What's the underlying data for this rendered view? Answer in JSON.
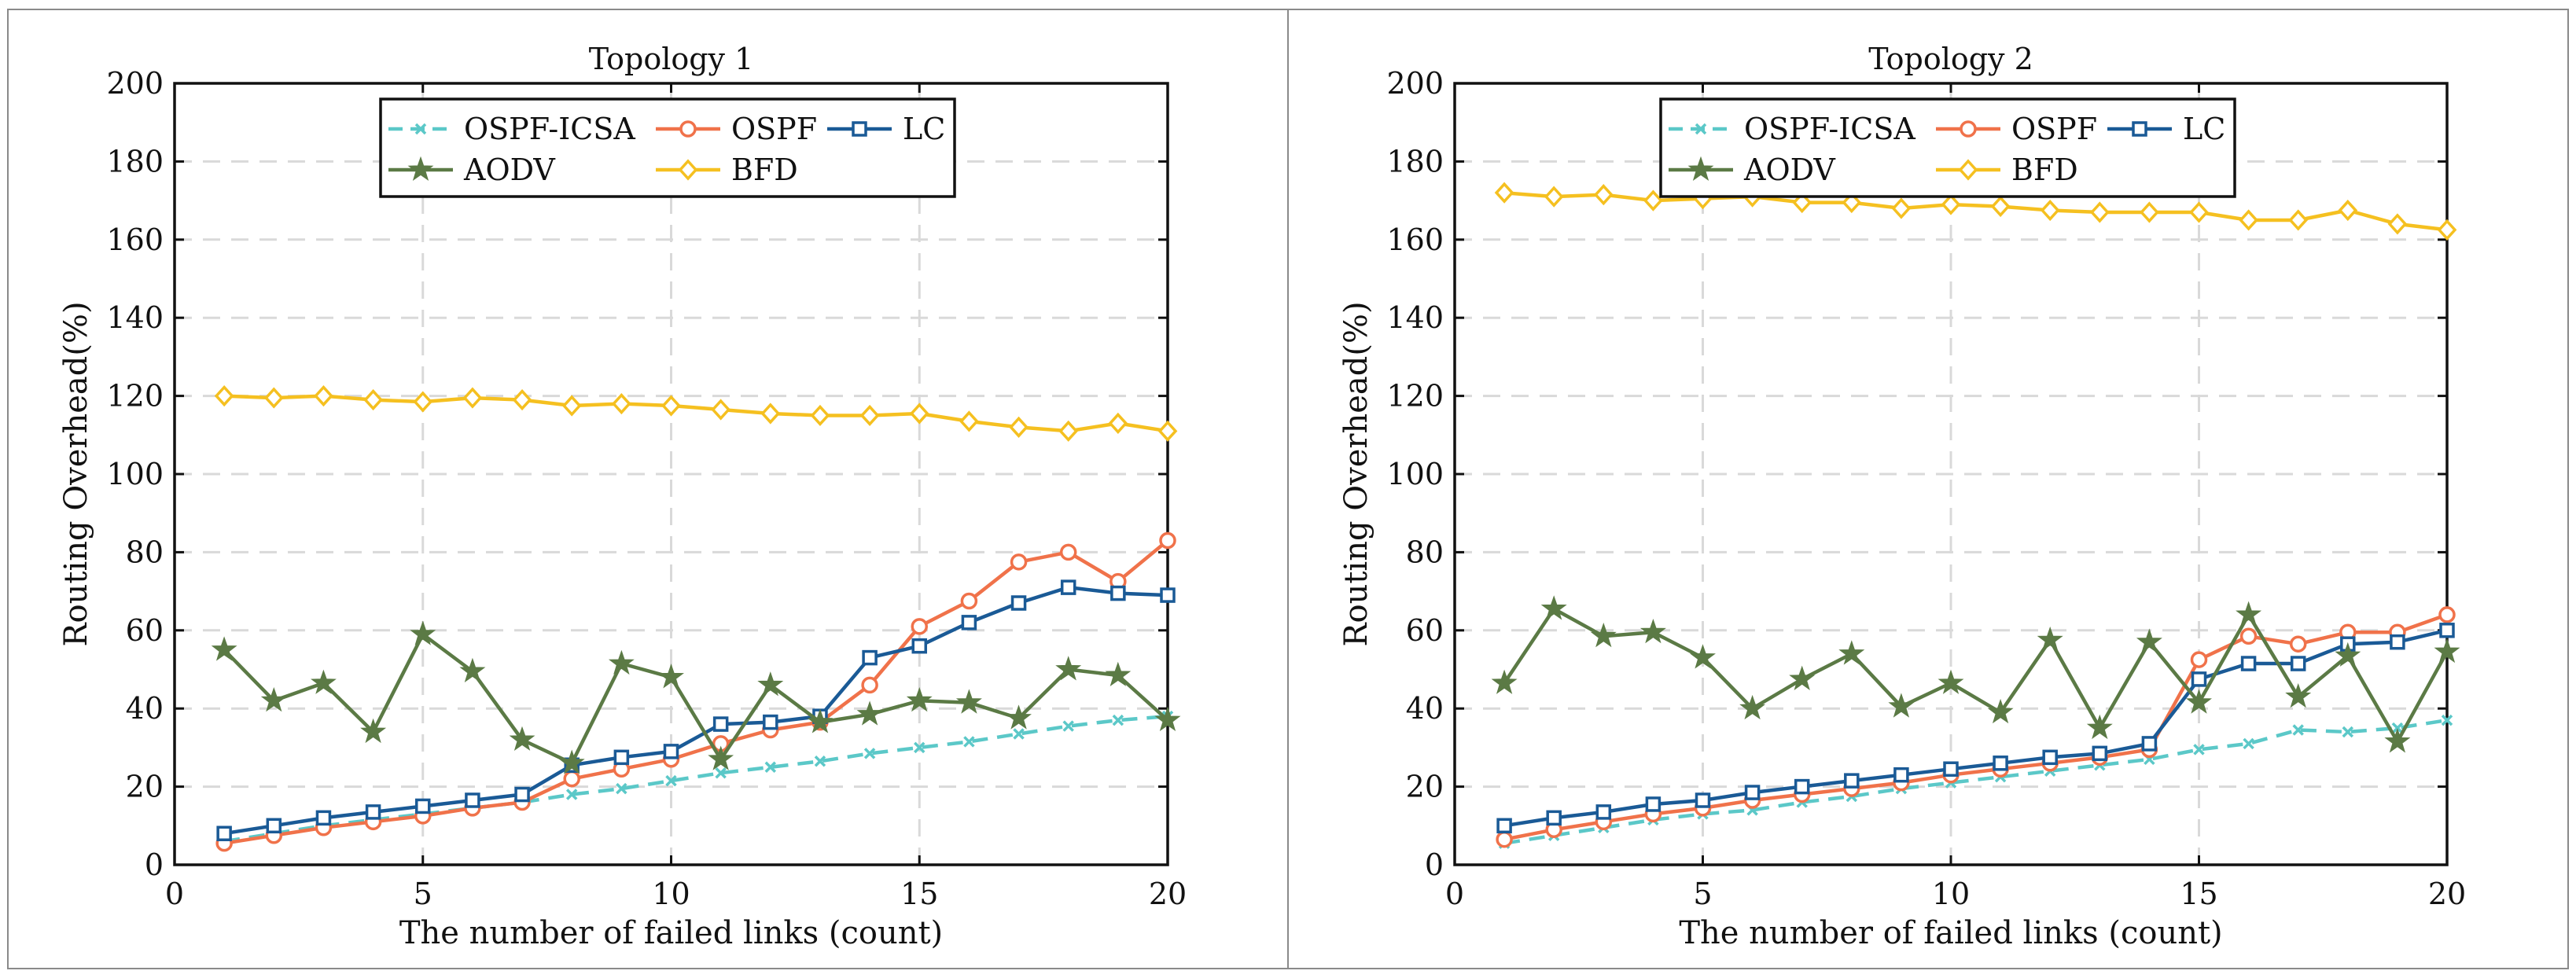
{
  "chart_data": [
    {
      "type": "line",
      "title": "Topology 1",
      "xlabel": "The number of failed links (count)",
      "ylabel": "Routing Overhead(%)",
      "xlim": [
        0,
        20
      ],
      "ylim": [
        0,
        200
      ],
      "xticks": [
        0,
        5,
        10,
        15,
        20
      ],
      "yticks": [
        0,
        20,
        40,
        60,
        80,
        100,
        120,
        140,
        160,
        180,
        200
      ],
      "xtick_labels": [
        "0",
        "5",
        "10",
        "15",
        "20"
      ],
      "ytick_labels": [
        "0",
        "20",
        "40",
        "60",
        "80",
        "100",
        "120",
        "140",
        "160",
        "180",
        "200"
      ],
      "grid": true,
      "legend_position": "top-center",
      "x": [
        1,
        2,
        3,
        4,
        5,
        6,
        7,
        8,
        9,
        10,
        11,
        12,
        13,
        14,
        15,
        16,
        17,
        18,
        19,
        20
      ],
      "series": [
        {
          "name": "OSPF-ICSA",
          "color": "#5bc8c8",
          "marker": "x",
          "dashed": true,
          "values": [
            6,
            8,
            10,
            11.5,
            13,
            14.5,
            16,
            18,
            19.5,
            21.5,
            23.5,
            25,
            26.5,
            28.5,
            30,
            31.5,
            33.5,
            35.5,
            37,
            38
          ]
        },
        {
          "name": "OSPF",
          "color": "#f0724a",
          "marker": "circle",
          "dashed": false,
          "values": [
            5.5,
            7.5,
            9.5,
            11,
            12.5,
            14.5,
            16,
            22,
            24.5,
            27,
            31,
            34.5,
            36.5,
            46,
            61,
            67.5,
            77.5,
            80,
            72.5,
            83
          ]
        },
        {
          "name": "LC",
          "color": "#1a5a96",
          "marker": "square",
          "dashed": false,
          "values": [
            8,
            10,
            12,
            13.5,
            15,
            16.5,
            18,
            25.5,
            27.5,
            29,
            36,
            36.5,
            38,
            53,
            56,
            62,
            67,
            71,
            69.5,
            69
          ]
        },
        {
          "name": "AODV",
          "color": "#5b7a45",
          "marker": "star",
          "dashed": false,
          "values": [
            55,
            42,
            46.5,
            34,
            59,
            49.5,
            32,
            26,
            51.5,
            48,
            27,
            46,
            36.5,
            38.5,
            42,
            41.5,
            37.5,
            50,
            48.5,
            37
          ]
        },
        {
          "name": "BFD",
          "color": "#f5c020",
          "marker": "diamond",
          "dashed": false,
          "values": [
            120,
            119.5,
            120,
            119,
            118.5,
            119.5,
            119,
            117.5,
            118,
            117.5,
            116.5,
            115.5,
            115,
            115,
            115.5,
            113.5,
            112,
            111,
            113,
            111
          ]
        }
      ]
    },
    {
      "type": "line",
      "title": "Topology 2",
      "xlabel": "The number of failed links (count)",
      "ylabel": "Routing Overhead(%)",
      "xlim": [
        0,
        20
      ],
      "ylim": [
        0,
        200
      ],
      "xticks": [
        0,
        5,
        10,
        15,
        20
      ],
      "yticks": [
        0,
        20,
        40,
        60,
        80,
        100,
        120,
        140,
        160,
        180,
        200
      ],
      "xtick_labels": [
        "0",
        "5",
        "10",
        "15",
        "20"
      ],
      "ytick_labels": [
        "0",
        "20",
        "40",
        "60",
        "80",
        "100",
        "120",
        "140",
        "160",
        "180",
        "200"
      ],
      "grid": true,
      "legend_position": "top-center",
      "x": [
        1,
        2,
        3,
        4,
        5,
        6,
        7,
        8,
        9,
        10,
        11,
        12,
        13,
        14,
        15,
        16,
        17,
        18,
        19,
        20
      ],
      "series": [
        {
          "name": "OSPF-ICSA",
          "color": "#5bc8c8",
          "marker": "x",
          "dashed": true,
          "values": [
            5.5,
            7.5,
            9.5,
            11.5,
            13,
            14,
            16,
            17.5,
            19.5,
            21,
            22.5,
            24,
            25.5,
            27,
            29.5,
            31,
            34.5,
            34,
            35,
            37
          ]
        },
        {
          "name": "OSPF",
          "color": "#f0724a",
          "marker": "circle",
          "dashed": false,
          "values": [
            6.5,
            9,
            11,
            13,
            14.5,
            16.5,
            18,
            19.5,
            21,
            23,
            24.5,
            26,
            27.5,
            29.5,
            52.5,
            58.5,
            56.5,
            59.5,
            59.5,
            64
          ]
        },
        {
          "name": "LC",
          "color": "#1a5a96",
          "marker": "square",
          "dashed": false,
          "values": [
            10,
            12,
            13.5,
            15.5,
            16.5,
            18.5,
            20,
            21.5,
            23,
            24.5,
            26,
            27.5,
            28.5,
            31,
            47.5,
            51.5,
            51.5,
            56.5,
            57,
            60
          ]
        },
        {
          "name": "AODV",
          "color": "#5b7a45",
          "marker": "star",
          "dashed": false,
          "values": [
            46.5,
            65.5,
            58.5,
            59.5,
            53,
            40,
            47.5,
            54,
            40.5,
            46.5,
            39,
            57.5,
            35,
            57,
            41.5,
            64,
            43,
            53.5,
            31.5,
            54.5
          ]
        },
        {
          "name": "BFD",
          "color": "#f5c020",
          "marker": "diamond",
          "dashed": false,
          "values": [
            172,
            171,
            171.5,
            170,
            170.5,
            171,
            169.5,
            169.5,
            168,
            169,
            168.5,
            167.5,
            167,
            167,
            167,
            165,
            165,
            167.5,
            164,
            162.5
          ]
        }
      ]
    }
  ]
}
